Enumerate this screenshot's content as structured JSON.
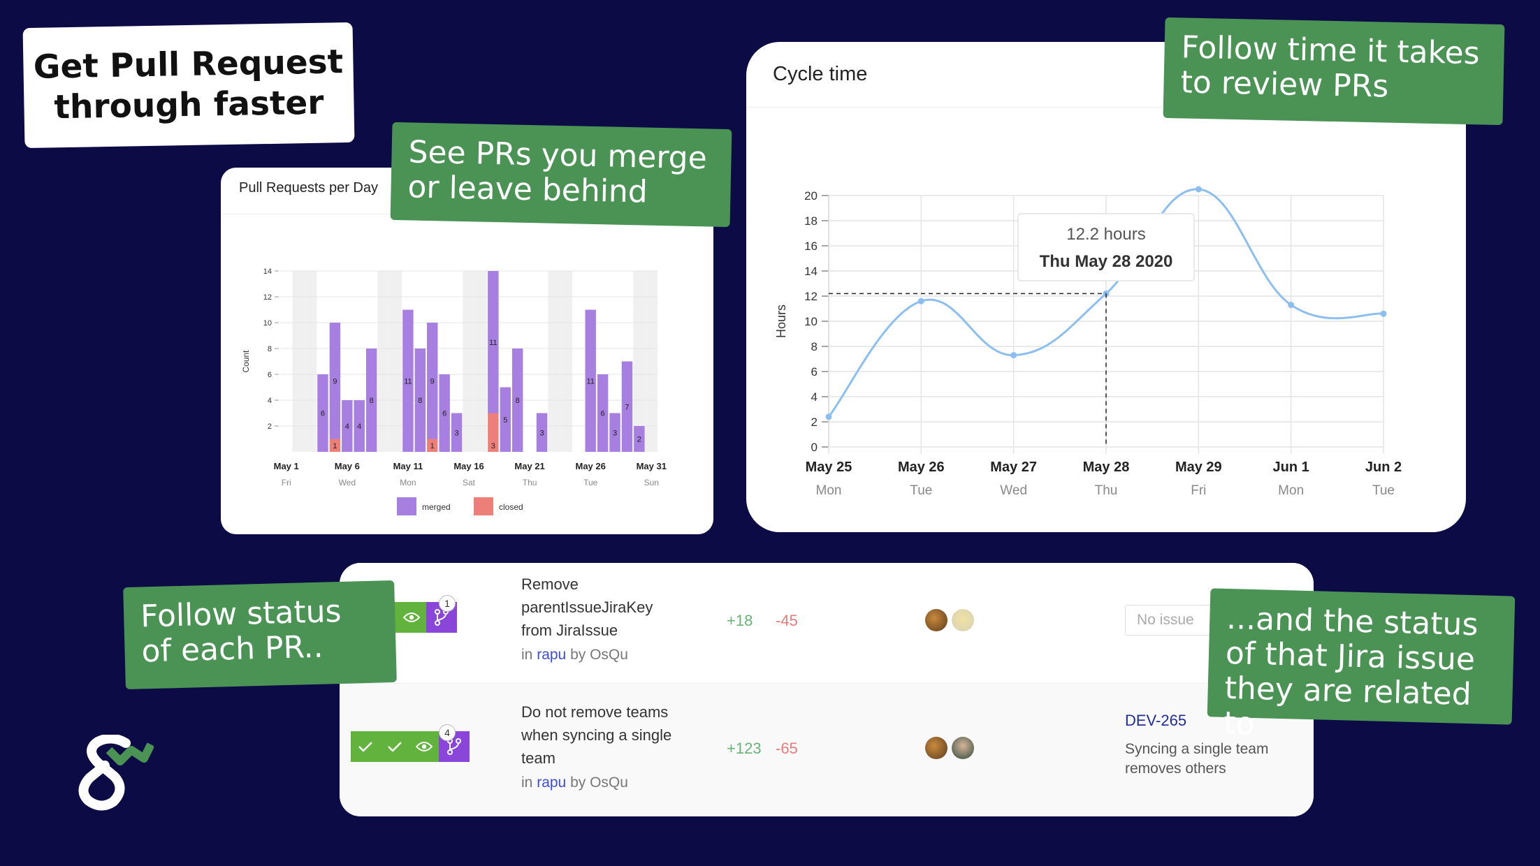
{
  "headline": {
    "line1": "Get Pull Request",
    "line2": "through faster"
  },
  "callouts": {
    "merge": {
      "line1": "See PRs you merge",
      "line2": "or leave behind"
    },
    "review": {
      "line1": "Follow time it takes",
      "line2": "to review PRs"
    },
    "status": {
      "line1": "Follow status",
      "line2": "of each PR.."
    },
    "jira": {
      "line1": "...and the status",
      "line2": "of that Jira issue",
      "line3": "they are related to"
    }
  },
  "colors": {
    "background": "#0c0b46",
    "callout": "#4a9355",
    "merged": "#a77fe0",
    "closed": "#ec8079",
    "line": "#8cbff0",
    "checks": "#62b23e",
    "branch": "#8a46d8"
  },
  "chart_data": [
    {
      "type": "bar",
      "title": "Pull Requests per Day",
      "ylabel": "Count",
      "ylim": [
        0,
        14
      ],
      "yticks": [
        2,
        4,
        6,
        8,
        10,
        12,
        14
      ],
      "x_tick_labels": [
        {
          "date": "May 1",
          "day": "Fri",
          "index": 0
        },
        {
          "date": "May 6",
          "day": "Wed",
          "index": 5
        },
        {
          "date": "May 11",
          "day": "Mon",
          "index": 10
        },
        {
          "date": "May 16",
          "day": "Sat",
          "index": 15
        },
        {
          "date": "May 21",
          "day": "Thu",
          "index": 20
        },
        {
          "date": "May 26",
          "day": "Tue",
          "index": 25
        },
        {
          "date": "May 31",
          "day": "Sun",
          "index": 30
        }
      ],
      "weekend_indices": [
        1,
        2,
        8,
        9,
        15,
        16,
        22,
        23,
        29,
        30
      ],
      "days": [
        "May 1",
        "May 2",
        "May 3",
        "May 4",
        "May 5",
        "May 6",
        "May 7",
        "May 8",
        "May 9",
        "May 10",
        "May 11",
        "May 12",
        "May 13",
        "May 14",
        "May 15",
        "May 16",
        "May 17",
        "May 18",
        "May 19",
        "May 20",
        "May 21",
        "May 22",
        "May 23",
        "May 24",
        "May 25",
        "May 26",
        "May 27",
        "May 28",
        "May 29",
        "May 30",
        "May 31"
      ],
      "series": [
        {
          "name": "merged",
          "values": [
            0,
            0,
            0,
            6,
            9,
            4,
            4,
            8,
            0,
            0,
            11,
            8,
            9,
            6,
            3,
            0,
            0,
            11,
            5,
            8,
            0,
            3,
            0,
            0,
            0,
            11,
            6,
            3,
            7,
            2,
            0
          ]
        },
        {
          "name": "closed",
          "values": [
            0,
            0,
            0,
            0,
            1,
            0,
            0,
            0,
            0,
            0,
            0,
            0,
            1,
            0,
            0,
            0,
            0,
            3,
            0,
            0,
            0,
            0,
            0,
            0,
            0,
            0,
            0,
            0,
            0,
            0,
            0
          ]
        }
      ],
      "legend": [
        "merged",
        "closed"
      ]
    },
    {
      "type": "line",
      "title": "Cycle time",
      "ylabel": "Hours",
      "ylim": [
        0,
        20
      ],
      "yticks": [
        0,
        2,
        4,
        6,
        8,
        10,
        12,
        14,
        16,
        18,
        20
      ],
      "categories": [
        {
          "date": "May 25",
          "day": "Mon"
        },
        {
          "date": "May 26",
          "day": "Tue"
        },
        {
          "date": "May 27",
          "day": "Wed"
        },
        {
          "date": "May 28",
          "day": "Thu"
        },
        {
          "date": "May 29",
          "day": "Fri"
        },
        {
          "date": "Jun 1",
          "day": "Mon"
        },
        {
          "date": "Jun 2",
          "day": "Tue"
        }
      ],
      "values": [
        2.4,
        11.6,
        7.3,
        12.2,
        20.5,
        11.3,
        10.6
      ],
      "tooltip": {
        "index": 3,
        "value_text": "12.2 hours",
        "date_text": "Thu May 28 2020"
      }
    }
  ],
  "pull_requests": [
    {
      "title_lines": [
        "Remove",
        "parentIssueJiraKey",
        "from JiraIssue"
      ],
      "in_text": "in",
      "repo": "rapu",
      "by_text": "by OsQu",
      "additions": "+18",
      "deletions": "-45",
      "review_count": "1",
      "checks": [
        "eye-icon"
      ],
      "issue_placeholder": "No issue"
    },
    {
      "title_lines": [
        "Do not remove teams",
        "when syncing a single",
        "team"
      ],
      "in_text": "in",
      "repo": "rapu",
      "by_text": "by OsQu",
      "additions": "+123",
      "deletions": "-65",
      "review_count": "4",
      "checks": [
        "check-icon",
        "check-icon",
        "eye-icon"
      ],
      "issue_key": "DEV-265",
      "issue_title_lines": [
        "Syncing a single team",
        "removes others"
      ]
    }
  ]
}
